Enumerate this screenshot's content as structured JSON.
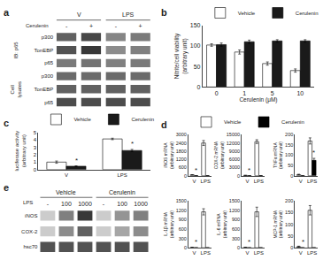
{
  "chart_data": [
    {
      "type": "blot",
      "title": "a",
      "xlabel": "Cerulenin",
      "category_groups": [
        {
          "name": "V",
          "categories": [
            "-",
            "+"
          ]
        },
        {
          "name": "LPS",
          "categories": [
            "-",
            "+"
          ]
        }
      ],
      "series_groups": [
        {
          "name": "IB: p65",
          "series": [
            {
              "name": "p300",
              "colors": [
                "#616161",
                "#474747",
                "#858585",
                "#7a7a7a"
              ]
            },
            {
              "name": "TonEBP",
              "colors": [
                "#525252",
                "#383838",
                "#8c8c8c",
                "#808080"
              ]
            },
            {
              "name": "p65",
              "colors": [
                "#7a7a7a",
                "#737373",
                "#808080",
                "#7a7a7a"
              ]
            }
          ]
        },
        {
          "name": "Cell\nlysates",
          "series": [
            {
              "name": "p300",
              "colors": [
                "#6b6b6b",
                "#6b6b6b",
                "#6b6b6b",
                "#6b6b6b"
              ]
            },
            {
              "name": "TonEBP",
              "colors": [
                "#616161",
                "#616161",
                "#616161",
                "#616161"
              ]
            },
            {
              "name": "p65",
              "colors": [
                "#4c4c4c",
                "#4c4c4c",
                "#4c4c4c",
                "#4c4c4c"
              ]
            }
          ]
        }
      ]
    },
    {
      "type": "bar",
      "title": "b",
      "legend": "top",
      "grid": false,
      "categories": [
        "0",
        "1",
        "5",
        "10"
      ],
      "xlabel": "Cerulenin (μM)",
      "ylabel": "Nitrite/cell viability\n(arbitrary unit)",
      "ylim": [
        0,
        150
      ],
      "yticks": [
        0,
        50,
        100,
        150
      ],
      "series": [
        {
          "name": "Vehicle",
          "color": "#ffffff",
          "values": [
            102,
            85,
            57,
            40
          ],
          "errors": [
            3,
            5,
            4,
            4
          ]
        },
        {
          "name": "Cerulenin",
          "color": "#1a1a1a",
          "values": [
            103,
            110,
            112,
            112
          ],
          "errors": [
            4,
            4,
            3,
            3
          ]
        }
      ]
    },
    {
      "type": "bar",
      "title": "c",
      "legend": "top",
      "grid": false,
      "categories": [
        "V",
        "LPS"
      ],
      "ylabel": "luciferase activity\n(arbitrary unit)",
      "ylim": [
        0,
        5
      ],
      "yticks": [
        0,
        1,
        2,
        3,
        4,
        5
      ],
      "series": [
        {
          "name": "Vehicle",
          "color": "#ffffff",
          "values": [
            1.0,
            4.1
          ],
          "errors": [
            0.15,
            0.1
          ]
        },
        {
          "name": "Cerulenin",
          "color": "#1a1a1a",
          "values": [
            0.45,
            2.55
          ],
          "errors": [
            0.05,
            0.15
          ]
        }
      ],
      "annotations": [
        {
          "text": "*",
          "category": "V",
          "series": "Cerulenin"
        },
        {
          "text": "*",
          "category": "LPS",
          "series": "Cerulenin"
        }
      ]
    },
    {
      "type": "blot",
      "title": "e",
      "xlabel": "LPS",
      "category_groups": [
        {
          "name": "Vehicle",
          "categories": [
            "-",
            "100",
            "1000"
          ]
        },
        {
          "name": "Cerulenin",
          "categories": [
            "-",
            "100",
            "1000"
          ]
        }
      ],
      "series": [
        {
          "name": "iNOS",
          "colors": [
            "#cccccc",
            "#808080",
            "#383838",
            "#cccccc",
            "#949494",
            "#808080"
          ]
        },
        {
          "name": "COX-2",
          "colors": [
            "#cccccc",
            "#8c8c8c",
            "#616161",
            "#cccccc",
            "#a6a6a6",
            "#8c8c8c"
          ]
        },
        {
          "name": "hsc70",
          "colors": [
            "#525252",
            "#525252",
            "#525252",
            "#525252",
            "#525252",
            "#525252"
          ]
        }
      ]
    },
    {
      "type": "bar",
      "title": "d",
      "legend": "top",
      "grid": false,
      "categories": [
        "V",
        "LPS"
      ],
      "ylabel": "iNOS mRNA\n(arbitrary unit)",
      "ylim": [
        0,
        3000
      ],
      "yticks": [
        0,
        600,
        1200,
        1800,
        2400,
        3000
      ],
      "series": [
        {
          "name": "Vehicle",
          "color": "#ffffff",
          "values": [
            60,
            2400
          ],
          "errors": [
            15,
            180
          ]
        },
        {
          "name": "Cerulenin",
          "color": "#000000",
          "values": [
            0,
            0
          ],
          "errors": [
            0,
            0
          ]
        }
      ],
      "annotations": [
        {
          "text": "*",
          "category": "V",
          "series": "Cerulenin"
        }
      ]
    },
    {
      "type": "bar",
      "grid": false,
      "categories": [
        "V",
        "LPS"
      ],
      "ylabel": "COX-2 mRNA\n(arbitrary unit)",
      "ylim": [
        0,
        15000
      ],
      "yticks": [
        0,
        3000,
        6000,
        9000,
        12000,
        15000
      ],
      "series": [
        {
          "name": "Vehicle",
          "color": "#ffffff",
          "values": [
            100,
            12500
          ],
          "errors": [
            50,
            700
          ]
        },
        {
          "name": "Cerulenin",
          "color": "#000000",
          "values": [
            0,
            0
          ],
          "errors": [
            0,
            0
          ]
        }
      ],
      "annotations": [
        {
          "text": "*",
          "category": "V",
          "series": "Cerulenin"
        }
      ]
    },
    {
      "type": "bar",
      "grid": false,
      "categories": [
        "V",
        "LPS"
      ],
      "ylabel": "TNFα mRNA\n(arbitrary unit)",
      "ylim": [
        0,
        200
      ],
      "yticks": [
        0,
        50,
        100,
        150,
        200
      ],
      "series": [
        {
          "name": "Vehicle",
          "color": "#ffffff",
          "values": [
            5,
            170
          ],
          "errors": [
            2,
            15
          ]
        },
        {
          "name": "Cerulenin",
          "color": "#000000",
          "values": [
            0,
            75
          ],
          "errors": [
            0,
            10
          ]
        }
      ],
      "annotations": [
        {
          "text": "*",
          "category": "LPS",
          "series": "Cerulenin"
        }
      ]
    },
    {
      "type": "bar",
      "grid": false,
      "categories": [
        "V",
        "LPS"
      ],
      "ylabel": "IL-1β mRNA\n(arbitrary unit)",
      "ylim": [
        0,
        1500
      ],
      "yticks": [
        0,
        300,
        600,
        900,
        1200,
        1500
      ],
      "series": [
        {
          "name": "Vehicle",
          "color": "#ffffff",
          "values": [
            10,
            1150
          ],
          "errors": [
            5,
            100
          ]
        },
        {
          "name": "Cerulenin",
          "color": "#000000",
          "values": [
            0,
            0
          ],
          "errors": [
            0,
            0
          ]
        }
      ],
      "annotations": [
        {
          "text": "*",
          "category": "V",
          "series": "Cerulenin"
        }
      ]
    },
    {
      "type": "bar",
      "grid": false,
      "categories": [
        "V",
        "LPS"
      ],
      "ylabel": "IL-6 mRNA\n(arbitrary unit)",
      "ylim": [
        0,
        1500
      ],
      "yticks": [
        0,
        300,
        600,
        900,
        1200,
        1500
      ],
      "series": [
        {
          "name": "Vehicle",
          "color": "#ffffff",
          "values": [
            10,
            1150
          ],
          "errors": [
            5,
            150
          ]
        },
        {
          "name": "Cerulenin",
          "color": "#000000",
          "values": [
            0,
            0
          ],
          "errors": [
            0,
            0
          ]
        }
      ],
      "annotations": [
        {
          "text": "*",
          "category": "V",
          "series": "Cerulenin"
        }
      ]
    },
    {
      "type": "bar",
      "grid": false,
      "categories": [
        "V",
        "LPS"
      ],
      "ylabel": "MCP-1 mRNA\n(arbitrary unit)",
      "ylim": [
        0,
        200
      ],
      "yticks": [
        0,
        50,
        100,
        150,
        200
      ],
      "series": [
        {
          "name": "Vehicle",
          "color": "#ffffff",
          "values": [
            5,
            160
          ],
          "errors": [
            2,
            20
          ]
        },
        {
          "name": "Cerulenin",
          "color": "#000000",
          "values": [
            0,
            0
          ],
          "errors": [
            0,
            0
          ]
        }
      ],
      "annotations": [
        {
          "text": "*",
          "category": "V",
          "series": "Cerulenin"
        }
      ]
    }
  ]
}
